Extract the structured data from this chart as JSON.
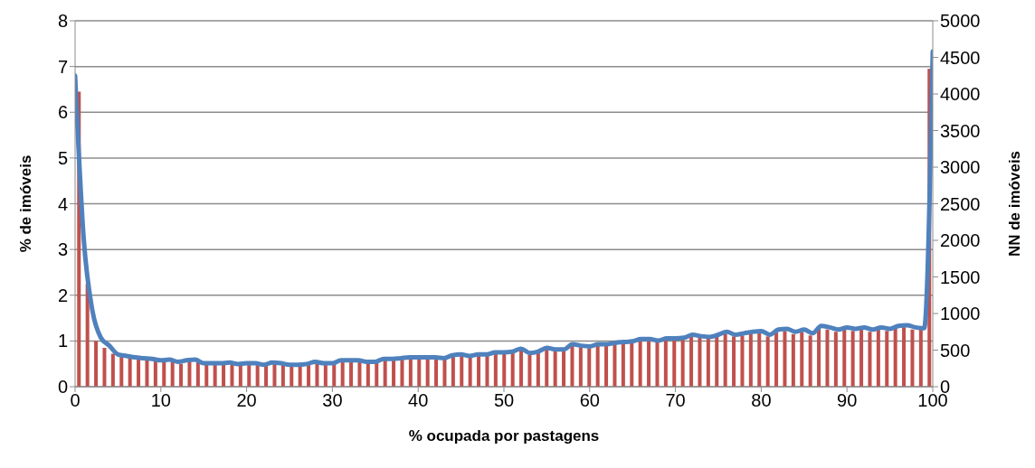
{
  "chart_data": {
    "type": "bar",
    "xlabel": "% ocupada por pastagens",
    "ylabel": "% de imóveis",
    "y2label": "NN  de imóveis",
    "x": [
      0,
      1,
      2,
      3,
      4,
      5,
      6,
      7,
      8,
      9,
      10,
      11,
      12,
      13,
      14,
      15,
      16,
      17,
      18,
      19,
      20,
      21,
      22,
      23,
      24,
      25,
      26,
      27,
      28,
      29,
      30,
      31,
      32,
      33,
      34,
      35,
      36,
      37,
      38,
      39,
      40,
      41,
      42,
      43,
      44,
      45,
      46,
      47,
      48,
      49,
      50,
      51,
      52,
      53,
      54,
      55,
      56,
      57,
      58,
      59,
      60,
      61,
      62,
      63,
      64,
      65,
      66,
      67,
      68,
      69,
      70,
      71,
      72,
      73,
      74,
      75,
      76,
      77,
      78,
      79,
      80,
      81,
      82,
      83,
      84,
      85,
      86,
      87,
      88,
      89,
      90,
      91,
      92,
      93,
      94,
      95,
      96,
      97,
      98,
      99,
      100
    ],
    "xlim": [
      0,
      100
    ],
    "xticks": [
      0,
      10,
      20,
      30,
      40,
      50,
      60,
      70,
      80,
      90,
      100
    ],
    "ylim": [
      0,
      8
    ],
    "yticks": [
      0,
      1,
      2,
      3,
      4,
      5,
      6,
      7,
      8
    ],
    "y2lim": [
      0,
      5000
    ],
    "y2ticks": [
      0,
      500,
      1000,
      1500,
      2000,
      2500,
      3000,
      3500,
      4000,
      4500,
      5000
    ],
    "grid": "y",
    "marker": "none",
    "line_style": "solid",
    "series": [
      {
        "color": "#c0504d",
        "values": [
          6.45,
          2.25,
          1.0,
          0.85,
          0.72,
          0.65,
          0.62,
          0.6,
          0.58,
          0.56,
          0.54,
          0.56,
          0.5,
          0.55,
          0.56,
          0.48,
          0.5,
          0.49,
          0.5,
          0.48,
          0.5,
          0.49,
          0.46,
          0.5,
          0.49,
          0.47,
          0.47,
          0.48,
          0.52,
          0.5,
          0.5,
          0.56,
          0.55,
          0.55,
          0.53,
          0.52,
          0.58,
          0.58,
          0.6,
          0.62,
          0.62,
          0.62,
          0.62,
          0.6,
          0.66,
          0.68,
          0.65,
          0.68,
          0.68,
          0.73,
          0.72,
          0.74,
          0.8,
          0.7,
          0.74,
          0.82,
          0.78,
          0.78,
          0.9,
          0.86,
          0.84,
          0.9,
          0.9,
          0.92,
          0.94,
          0.95,
          1.0,
          1.0,
          0.97,
          1.02,
          1.02,
          1.03,
          1.1,
          1.07,
          1.05,
          1.1,
          1.15,
          1.1,
          1.12,
          1.15,
          1.17,
          1.1,
          1.2,
          1.22,
          1.15,
          1.2,
          1.12,
          1.28,
          1.25,
          1.2,
          1.25,
          1.22,
          1.25,
          1.2,
          1.25,
          1.22,
          1.28,
          1.3,
          1.25,
          1.3,
          6.95
        ]
      },
      {
        "type": "line",
        "axis": "y2",
        "color": "#4f81bd",
        "values": [
          4250,
          2030,
          1050,
          670,
          560,
          440,
          420,
          400,
          390,
          380,
          360,
          370,
          340,
          360,
          370,
          320,
          320,
          320,
          330,
          310,
          320,
          320,
          300,
          330,
          320,
          300,
          300,
          310,
          340,
          320,
          320,
          360,
          360,
          360,
          340,
          340,
          380,
          380,
          390,
          400,
          400,
          400,
          400,
          390,
          430,
          440,
          420,
          440,
          440,
          470,
          470,
          480,
          520,
          460,
          480,
          530,
          510,
          510,
          580,
          560,
          550,
          580,
          580,
          600,
          610,
          620,
          650,
          650,
          630,
          660,
          660,
          670,
          710,
          690,
          680,
          710,
          750,
          710,
          730,
          750,
          760,
          710,
          780,
          790,
          750,
          780,
          730,
          830,
          810,
          780,
          810,
          790,
          810,
          780,
          810,
          790,
          830,
          840,
          810,
          800,
          4580
        ]
      }
    ]
  }
}
